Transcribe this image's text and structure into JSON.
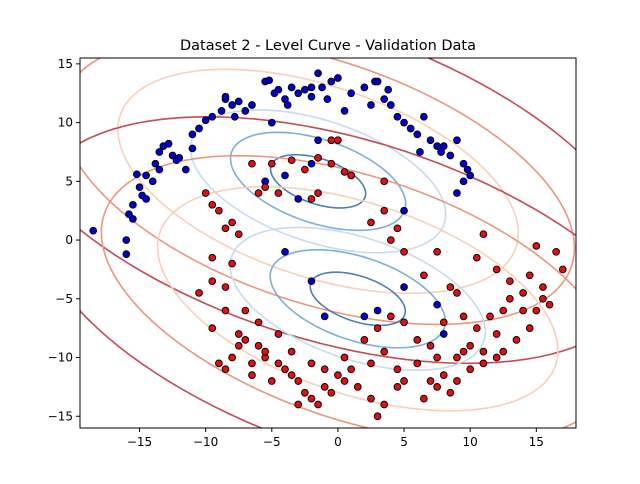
{
  "chart_data": {
    "type": "scatter",
    "title": "Dataset 2 - Level Curve - Validation Data",
    "xlabel": "",
    "ylabel": "",
    "xlim": [
      -19.5,
      18.0
    ],
    "ylim": [
      -16.0,
      15.5
    ],
    "x_ticks": [
      -15,
      -10,
      -5,
      0,
      5,
      10,
      15
    ],
    "y_ticks": [
      -15,
      -10,
      -5,
      0,
      5,
      10,
      15
    ],
    "x_tick_labels": [
      "−15",
      "−10",
      "−5",
      "0",
      "5",
      "10",
      "15"
    ],
    "y_tick_labels": [
      "−15",
      "−10",
      "−5",
      "0",
      "5",
      "10",
      "15"
    ],
    "grid": false,
    "colors": {
      "class_blue": "#0000cc",
      "class_red": "#dd1111",
      "marker_edge": "#000000"
    },
    "level_curves": [
      {
        "center": [
          -1.5,
          5.0
        ],
        "axes": [
          26.0,
          13.0
        ],
        "angle_deg": -22,
        "level_color": "#c34a56"
      },
      {
        "center": [
          -1.5,
          5.0
        ],
        "axes": [
          20.5,
          10.2
        ],
        "angle_deg": -22,
        "level_color": "#e9967c"
      },
      {
        "center": [
          -1.5,
          5.0
        ],
        "axes": [
          16.0,
          8.0
        ],
        "angle_deg": -22,
        "level_color": "#f8cfb8"
      },
      {
        "center": [
          -1.5,
          5.0
        ],
        "axes": [
          10.2,
          5.1
        ],
        "angle_deg": -22,
        "level_color": "#c6dbef"
      },
      {
        "center": [
          -1.5,
          5.0
        ],
        "axes": [
          7.0,
          3.5
        ],
        "angle_deg": -22,
        "level_color": "#7bafd4"
      },
      {
        "center": [
          -1.5,
          5.0
        ],
        "axes": [
          3.8,
          1.9
        ],
        "angle_deg": -22,
        "level_color": "#4a7fb5"
      },
      {
        "center": [
          1.5,
          -5.0
        ],
        "axes": [
          26.0,
          13.0
        ],
        "angle_deg": -22,
        "level_color": "#c34a56"
      },
      {
        "center": [
          1.5,
          -5.0
        ],
        "axes": [
          20.5,
          10.2
        ],
        "angle_deg": -22,
        "level_color": "#e9967c"
      },
      {
        "center": [
          1.5,
          -5.0
        ],
        "axes": [
          16.0,
          8.0
        ],
        "angle_deg": -22,
        "level_color": "#f8cfb8"
      },
      {
        "center": [
          1.5,
          -5.0
        ],
        "axes": [
          10.2,
          5.1
        ],
        "angle_deg": -22,
        "level_color": "#c6dbef"
      },
      {
        "center": [
          1.5,
          -5.0
        ],
        "axes": [
          7.0,
          3.5
        ],
        "angle_deg": -22,
        "level_color": "#7bafd4"
      },
      {
        "center": [
          1.5,
          -5.0
        ],
        "axes": [
          3.8,
          1.9
        ],
        "angle_deg": -22,
        "level_color": "#4a7fb5"
      }
    ],
    "series": [
      {
        "class": "blue",
        "points": [
          [
            -18.5,
            0.8
          ],
          [
            -16.0,
            0.0
          ],
          [
            -15.8,
            2.2
          ],
          [
            -15.5,
            1.8
          ],
          [
            -15.5,
            3.0
          ],
          [
            -15.0,
            4.5
          ],
          [
            -14.8,
            3.8
          ],
          [
            -14.5,
            3.5
          ],
          [
            -15.2,
            5.6
          ],
          [
            -14.0,
            5.0
          ],
          [
            -13.8,
            6.5
          ],
          [
            -13.5,
            7.5
          ],
          [
            -13.2,
            8.0
          ],
          [
            -12.8,
            8.2
          ],
          [
            -12.5,
            7.2
          ],
          [
            -12.0,
            7.0
          ],
          [
            -11.5,
            6.0
          ],
          [
            -11.0,
            9.0
          ],
          [
            -10.5,
            9.5
          ],
          [
            -10.0,
            10.2
          ],
          [
            -9.5,
            10.5
          ],
          [
            -8.8,
            11.0
          ],
          [
            -8.5,
            12.0
          ],
          [
            -8.0,
            11.5
          ],
          [
            -7.5,
            11.8
          ],
          [
            -7.0,
            11.0
          ],
          [
            -6.5,
            11.5
          ],
          [
            -5.5,
            13.5
          ],
          [
            -5.2,
            13.6
          ],
          [
            -4.8,
            12.5
          ],
          [
            -4.5,
            12.8
          ],
          [
            -4.0,
            12.0
          ],
          [
            -3.8,
            11.5
          ],
          [
            -3.5,
            13.0
          ],
          [
            -3.0,
            12.5
          ],
          [
            -2.5,
            12.8
          ],
          [
            -2.0,
            13.0
          ],
          [
            -2.0,
            12.2
          ],
          [
            -1.5,
            14.2
          ],
          [
            -1.2,
            13.0
          ],
          [
            -0.8,
            12.0
          ],
          [
            -0.5,
            13.5
          ],
          [
            0.0,
            13.8
          ],
          [
            0.5,
            11.0
          ],
          [
            1.0,
            12.5
          ],
          [
            2.0,
            13.0
          ],
          [
            2.5,
            11.5
          ],
          [
            2.8,
            13.5
          ],
          [
            3.0,
            13.5
          ],
          [
            3.5,
            12.0
          ],
          [
            4.0,
            11.5
          ],
          [
            4.5,
            10.5
          ],
          [
            5.0,
            10.0
          ],
          [
            5.5,
            9.5
          ],
          [
            6.0,
            9.0
          ],
          [
            6.5,
            10.5
          ],
          [
            7.0,
            8.5
          ],
          [
            7.5,
            8.0
          ],
          [
            7.8,
            7.5
          ],
          [
            8.0,
            8.0
          ],
          [
            8.5,
            7.2
          ],
          [
            9.0,
            8.5
          ],
          [
            9.5,
            6.5
          ],
          [
            9.8,
            6.0
          ],
          [
            10.0,
            5.5
          ],
          [
            9.5,
            5.0
          ],
          [
            9.0,
            4.0
          ],
          [
            -5.5,
            5.0
          ],
          [
            -4.0,
            5.5
          ],
          [
            -2.0,
            6.5
          ],
          [
            -3.0,
            3.5
          ],
          [
            1.0,
            5.5
          ],
          [
            -8.5,
            12.2
          ],
          [
            -7.8,
            10.5
          ],
          [
            -11.0,
            7.8
          ],
          [
            -12.2,
            6.8
          ],
          [
            -13.5,
            6.0
          ],
          [
            -14.5,
            5.5
          ],
          [
            -5.0,
            10.0
          ],
          [
            -1.5,
            8.5
          ],
          [
            3.8,
            12.8
          ],
          [
            6.2,
            7.5
          ],
          [
            5.0,
            2.5
          ],
          [
            -16.0,
            -1.2
          ],
          [
            -4.0,
            -1.0
          ],
          [
            -2.0,
            -3.5
          ],
          [
            -1.0,
            -6.5
          ],
          [
            2.0,
            -6.5
          ],
          [
            3.0,
            -6.0
          ],
          [
            7.5,
            -5.5
          ],
          [
            8.0,
            -8.0
          ],
          [
            5.0,
            -4.0
          ]
        ]
      },
      {
        "class": "red",
        "points": [
          [
            -10.0,
            4.0
          ],
          [
            -9.5,
            3.0
          ],
          [
            -9.0,
            2.5
          ],
          [
            -10.5,
            -4.5
          ],
          [
            -9.5,
            -3.5
          ],
          [
            -9.5,
            -1.5
          ],
          [
            -8.5,
            1.0
          ],
          [
            -8.0,
            1.5
          ],
          [
            -8.0,
            -2.0
          ],
          [
            -7.5,
            0.5
          ],
          [
            -6.5,
            6.5
          ],
          [
            -6.0,
            4.0
          ],
          [
            -5.5,
            4.5
          ],
          [
            -5.0,
            6.5
          ],
          [
            -4.5,
            4.0
          ],
          [
            -3.5,
            6.8
          ],
          [
            -2.5,
            6.0
          ],
          [
            -1.5,
            7.0
          ],
          [
            -0.5,
            6.5
          ],
          [
            0.0,
            8.5
          ],
          [
            -0.5,
            8.5
          ],
          [
            0.5,
            5.8
          ],
          [
            1.0,
            5.5
          ],
          [
            -1.5,
            4.0
          ],
          [
            -2.0,
            3.5
          ],
          [
            3.5,
            5.0
          ],
          [
            3.5,
            2.5
          ],
          [
            2.5,
            1.5
          ],
          [
            4.0,
            0.0
          ],
          [
            4.5,
            1.0
          ],
          [
            5.0,
            -1.0
          ],
          [
            6.5,
            -3.0
          ],
          [
            7.5,
            -1.0
          ],
          [
            8.5,
            -4.0
          ],
          [
            9.0,
            -4.5
          ],
          [
            10.5,
            -1.5
          ],
          [
            11.0,
            0.5
          ],
          [
            12.0,
            -2.5
          ],
          [
            13.0,
            -3.5
          ],
          [
            14.0,
            -6.0
          ],
          [
            14.5,
            -7.5
          ],
          [
            15.0,
            -6.0
          ],
          [
            15.5,
            -4.0
          ],
          [
            16.0,
            -5.5
          ],
          [
            15.5,
            -5.0
          ],
          [
            16.5,
            -1.0
          ],
          [
            17.0,
            -2.5
          ],
          [
            15.0,
            -0.5
          ],
          [
            13.5,
            -8.5
          ],
          [
            12.5,
            -9.5
          ],
          [
            12.0,
            -10.0
          ],
          [
            11.0,
            -10.5
          ],
          [
            10.0,
            -9.0
          ],
          [
            9.5,
            -9.5
          ],
          [
            9.0,
            -10.0
          ],
          [
            8.0,
            -11.5
          ],
          [
            7.5,
            -12.5
          ],
          [
            7.0,
            -12.0
          ],
          [
            6.5,
            -13.5
          ],
          [
            5.0,
            -12.0
          ],
          [
            4.5,
            -12.5
          ],
          [
            3.5,
            -14.0
          ],
          [
            3.0,
            -15.0
          ],
          [
            2.5,
            -13.5
          ],
          [
            1.5,
            -12.5
          ],
          [
            0.5,
            -12.0
          ],
          [
            -0.5,
            -13.0
          ],
          [
            -1.0,
            -12.5
          ],
          [
            -1.5,
            -14.0
          ],
          [
            -2.0,
            -13.5
          ],
          [
            -2.5,
            -13.0
          ],
          [
            -3.0,
            -14.0
          ],
          [
            -3.5,
            -11.5
          ],
          [
            -4.0,
            -11.0
          ],
          [
            -4.5,
            -10.5
          ],
          [
            -5.0,
            -12.0
          ],
          [
            -5.5,
            -10.0
          ],
          [
            -6.0,
            -9.0
          ],
          [
            -6.5,
            -10.5
          ],
          [
            -7.0,
            -8.5
          ],
          [
            -7.5,
            -9.0
          ],
          [
            -8.0,
            -10.0
          ],
          [
            -8.5,
            -11.0
          ],
          [
            -9.0,
            -10.5
          ],
          [
            -9.5,
            -7.5
          ],
          [
            -8.5,
            -6.0
          ],
          [
            -7.5,
            -8.0
          ],
          [
            -6.5,
            -11.5
          ],
          [
            -5.5,
            -9.5
          ],
          [
            -4.5,
            -8.0
          ],
          [
            -3.5,
            -9.5
          ],
          [
            -2.0,
            -10.5
          ],
          [
            0.5,
            -10.0
          ],
          [
            1.0,
            -11.0
          ],
          [
            2.0,
            -8.5
          ],
          [
            3.0,
            -7.5
          ],
          [
            4.0,
            -6.5
          ],
          [
            5.0,
            -7.0
          ],
          [
            6.0,
            -8.5
          ],
          [
            7.0,
            -9.0
          ],
          [
            8.0,
            -7.0
          ],
          [
            9.5,
            -6.5
          ],
          [
            10.5,
            -7.5
          ],
          [
            11.5,
            -6.5
          ],
          [
            12.5,
            -6.0
          ],
          [
            13.0,
            -5.0
          ],
          [
            14.0,
            -4.5
          ],
          [
            14.5,
            -3.0
          ],
          [
            12.0,
            -8.0
          ],
          [
            11.0,
            -9.5
          ],
          [
            10.0,
            -11.0
          ],
          [
            9.0,
            -12.0
          ],
          [
            8.5,
            -13.0
          ],
          [
            -7.0,
            -6.0
          ],
          [
            -8.5,
            -4.0
          ],
          [
            -6.0,
            -7.0
          ],
          [
            -3.0,
            -12.0
          ],
          [
            0.0,
            -11.5
          ],
          [
            6.0,
            -10.5
          ],
          [
            3.5,
            -9.5
          ],
          [
            -1.0,
            -11.0
          ],
          [
            2.5,
            -10.5
          ],
          [
            4.5,
            -11.0
          ],
          [
            7.5,
            -10.0
          ]
        ]
      }
    ]
  }
}
